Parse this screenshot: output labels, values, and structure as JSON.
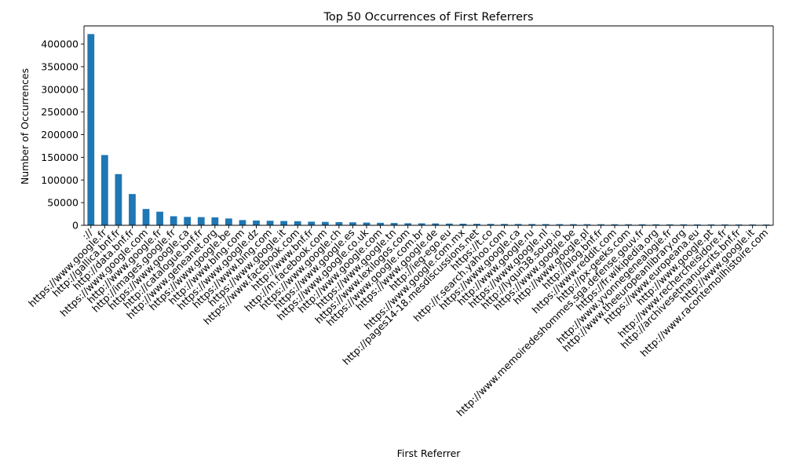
{
  "chart_data": {
    "type": "bar",
    "title": "Top 50 Occurrences of First Referrers",
    "xlabel": "First Referrer",
    "ylabel": "Number of Occurrences",
    "ylim": [
      0,
      440000
    ],
    "yticks": [
      0,
      50000,
      100000,
      150000,
      200000,
      250000,
      300000,
      350000,
      400000
    ],
    "ytick_labels": [
      "0",
      "50000",
      "100000",
      "150000",
      "200000",
      "250000",
      "300000",
      "350000",
      "400000"
    ],
    "grid": false,
    "legend": "none",
    "bar_color": "#1f77b4",
    "categories": [
      "://",
      "https://www.google.fr",
      "http://gallica.bnf.fr",
      "http://data.bnf.fr",
      "https://www.google.com",
      "http://www.google.fr",
      "http://images.google.fr",
      "https://www.google.ca",
      "http://catalogue.bnf.fr",
      "http://www.geneanet.org",
      "https://www.google.be",
      "http://www.bing.com",
      "https://www.google.dz",
      "https://www.bing.com",
      "https://www.google.it",
      "https://www.facebook.com",
      "http://www.bnf.fr",
      "http://m.facebook.com",
      "https://www.google.ch",
      "https://www.google.es",
      "https://www.google.co.uk",
      "http://www.google.com",
      "https://www.google.tn",
      "https://www.lexilogos.com",
      "https://www.google.com.br",
      "https://www.google.de",
      "http://ieg-ego.eu",
      "https://www.google.com.mx",
      "http://pages14-18.mesdiscussions.net",
      "https://t.co",
      "http://r.search.yahoo.com",
      "https://www.google.ca",
      "http://www.google.ru",
      "https://www.google.nl",
      "http://lyqun38.soup.io",
      "https://www.google.be",
      "http://www.google.pl",
      "http://blog.bnf.fr",
      "https://www.reddit.com",
      "http://px-geeks.com",
      "http://www.memoiredeshommes.sga.defense.gouv.fr",
      "https://fr.wikipedia.org",
      "http://www.yvonnegenealogie.fr",
      "http://www.theeuropeanlibrary.org",
      "https://www.europeana.eu",
      "http://www.google.pt",
      "http://www.rechercheisidore.fr",
      "http://archivesetmanuscrits.bnf.fr",
      "http://www.google.it",
      "http://www.racontemoilhistoire.com"
    ],
    "values": [
      422000,
      155000,
      113000,
      69000,
      36000,
      30000,
      20000,
      18500,
      18000,
      17500,
      15000,
      11500,
      10500,
      10000,
      9500,
      9000,
      8000,
      7500,
      7000,
      6500,
      6000,
      5500,
      5000,
      4500,
      4300,
      4100,
      3800,
      3500,
      3300,
      3100,
      3000,
      2900,
      2800,
      2700,
      2600,
      2500,
      2450,
      2400,
      2350,
      2300,
      2250,
      2200,
      2150,
      2100,
      2050,
      2000,
      1950,
      1900,
      1850,
      1800
    ]
  }
}
